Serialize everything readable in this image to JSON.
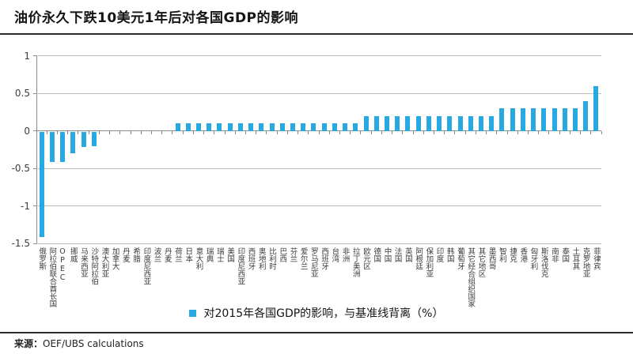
{
  "page": {
    "title": "油价永久下跌10美元1年后对各国GDP的影响"
  },
  "footer": {
    "source_label": "来源：",
    "source_text": "OEF/UBS calculations"
  },
  "colors": {
    "bar": "#29A9E1",
    "axis": "#8a8a8a",
    "gridline": "#bdbdbd",
    "rule": "#2b2b2b"
  },
  "chart_data": {
    "type": "bar",
    "title": "油价永久下跌10美元1年后对各国GDP的影响",
    "legend": "对2015年各国GDP的影响，与基准线背离（%）",
    "legend_position": "bottom-center",
    "xlabel": "",
    "ylabel": "",
    "ylim": [
      -1.5,
      1
    ],
    "yticks": [
      1,
      0.5,
      0,
      -0.5,
      -1,
      -1.5
    ],
    "grid": true,
    "categories": [
      "俄罗斯",
      "阿拉伯联合酋长国",
      "OPEC",
      "挪威",
      "马来西亚",
      "沙特阿拉伯",
      "澳大利亚",
      "加拿大",
      "丹麦",
      "希腊",
      "印度尼西亚",
      "波兰",
      "丹麦",
      "荷兰",
      "日本",
      "意大利",
      "瑞典",
      "瑞士",
      "美国",
      "印度尼西亚",
      "西班牙",
      "奥地利",
      "比利时",
      "巴西",
      "芬兰",
      "爱尔兰",
      "罗马尼亚",
      "西班牙",
      "台湾",
      "非洲",
      "拉丁美洲",
      "欧元区",
      "德国",
      "中国",
      "法国",
      "英国",
      "阿根廷",
      "保加利亚",
      "印度",
      "韩国",
      "葡萄牙",
      "其它经合组织国家",
      "其它地区",
      "墨西哥",
      "智利",
      "捷克",
      "香港",
      "匈牙利",
      "斯洛伐克",
      "南非",
      "泰国",
      "土耳其",
      "克罗地亚",
      "菲律宾"
    ],
    "values": [
      -1.4,
      -0.4,
      -0.41,
      -0.29,
      -0.2,
      -0.19,
      0,
      0,
      0,
      0,
      0,
      0,
      0,
      0.1,
      0.1,
      0.1,
      0.1,
      0.1,
      0.1,
      0.1,
      0.1,
      0.1,
      0.1,
      0.1,
      0.1,
      0.1,
      0.1,
      0.1,
      0.1,
      0.1,
      0.1,
      0.2,
      0.2,
      0.2,
      0.2,
      0.2,
      0.2,
      0.2,
      0.2,
      0.2,
      0.2,
      0.2,
      0.2,
      0.2,
      0.3,
      0.3,
      0.3,
      0.3,
      0.3,
      0.3,
      0.3,
      0.3,
      0.4,
      0.6
    ]
  }
}
